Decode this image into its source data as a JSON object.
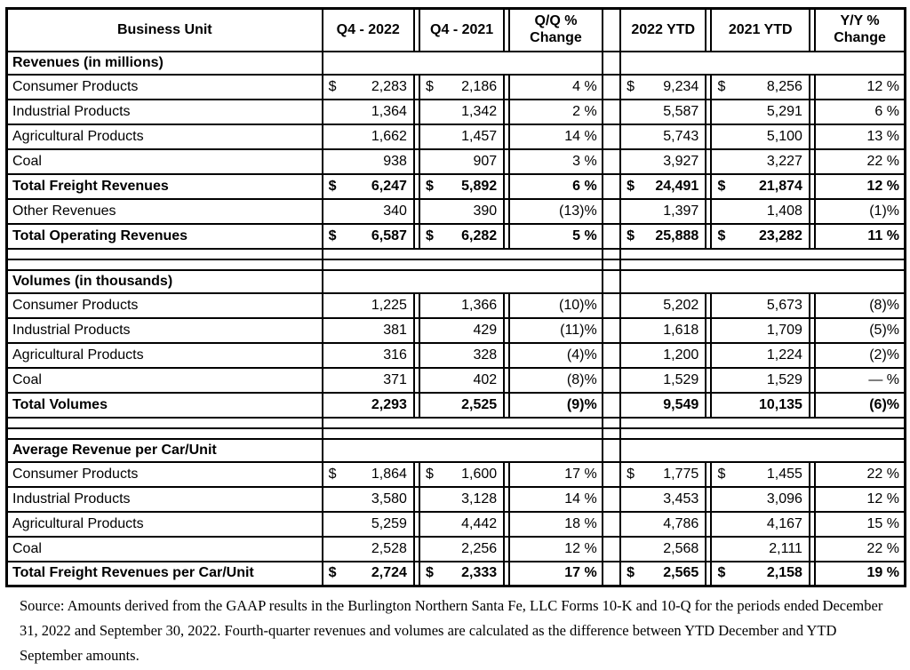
{
  "currency_symbol": "$",
  "table": {
    "header": {
      "business_unit": "Business Unit",
      "q4_2022": "Q4 - 2022",
      "q4_2021": "Q4 - 2021",
      "qq_change": "Q/Q %\nChange",
      "ytd_2022": "2022 YTD",
      "ytd_2021": "2021 YTD",
      "yy_change": "Y/Y %\nChange"
    },
    "rows": [
      {
        "type": "section",
        "label": "Revenues (in millions)"
      },
      {
        "type": "data",
        "label": "Consumer Products",
        "dollar": true,
        "q4_2022": "2,283",
        "q4_2021": "2,186",
        "qq": "4 %",
        "ytd_2022": "9,234",
        "ytd_2021": "8,256",
        "yy": "12 %"
      },
      {
        "type": "data",
        "label": "Industrial Products",
        "dollar": false,
        "q4_2022": "1,364",
        "q4_2021": "1,342",
        "qq": "2 %",
        "ytd_2022": "5,587",
        "ytd_2021": "5,291",
        "yy": "6 %"
      },
      {
        "type": "data",
        "label": "Agricultural Products",
        "dollar": false,
        "q4_2022": "1,662",
        "q4_2021": "1,457",
        "qq": "14 %",
        "ytd_2022": "5,743",
        "ytd_2021": "5,100",
        "yy": "13 %"
      },
      {
        "type": "data",
        "label": "Coal",
        "dollar": false,
        "q4_2022": "938",
        "q4_2021": "907",
        "qq": "3 %",
        "ytd_2022": "3,927",
        "ytd_2021": "3,227",
        "yy": "22 %"
      },
      {
        "type": "total",
        "label": "Total Freight Revenues",
        "dollar": true,
        "q4_2022": "6,247",
        "q4_2021": "5,892",
        "qq": "6 %",
        "ytd_2022": "24,491",
        "ytd_2021": "21,874",
        "yy": "12 %"
      },
      {
        "type": "data",
        "label": "Other Revenues",
        "dollar": false,
        "q4_2022": "340",
        "q4_2021": "390",
        "qq": "(13)%",
        "ytd_2022": "1,397",
        "ytd_2021": "1,408",
        "yy": "(1)%"
      },
      {
        "type": "total",
        "label": "Total Operating Revenues",
        "dollar": true,
        "q4_2022": "6,587",
        "q4_2021": "6,282",
        "qq": "5 %",
        "ytd_2022": "25,888",
        "ytd_2021": "23,282",
        "yy": "11 %"
      },
      {
        "type": "spacer"
      },
      {
        "type": "spacer"
      },
      {
        "type": "section",
        "label": "Volumes (in thousands)"
      },
      {
        "type": "data",
        "label": "Consumer Products",
        "dollar": false,
        "q4_2022": "1,225",
        "q4_2021": "1,366",
        "qq": "(10)%",
        "ytd_2022": "5,202",
        "ytd_2021": "5,673",
        "yy": "(8)%"
      },
      {
        "type": "data",
        "label": "Industrial Products",
        "dollar": false,
        "q4_2022": "381",
        "q4_2021": "429",
        "qq": "(11)%",
        "ytd_2022": "1,618",
        "ytd_2021": "1,709",
        "yy": "(5)%"
      },
      {
        "type": "data",
        "label": "Agricultural Products",
        "dollar": false,
        "q4_2022": "316",
        "q4_2021": "328",
        "qq": "(4)%",
        "ytd_2022": "1,200",
        "ytd_2021": "1,224",
        "yy": "(2)%"
      },
      {
        "type": "data",
        "label": "Coal",
        "dollar": false,
        "q4_2022": "371",
        "q4_2021": "402",
        "qq": "(8)%",
        "ytd_2022": "1,529",
        "ytd_2021": "1,529",
        "yy": "— %"
      },
      {
        "type": "total",
        "label": "Total Volumes",
        "dollar": false,
        "q4_2022": "2,293",
        "q4_2021": "2,525",
        "qq": "(9)%",
        "ytd_2022": "9,549",
        "ytd_2021": "10,135",
        "yy": "(6)%"
      },
      {
        "type": "spacer"
      },
      {
        "type": "spacer"
      },
      {
        "type": "section",
        "label": "Average Revenue per Car/Unit"
      },
      {
        "type": "data",
        "label": "Consumer Products",
        "dollar": true,
        "q4_2022": "1,864",
        "q4_2021": "1,600",
        "qq": "17 %",
        "ytd_2022": "1,775",
        "ytd_2021": "1,455",
        "yy": "22 %"
      },
      {
        "type": "data",
        "label": "Industrial Products",
        "dollar": false,
        "q4_2022": "3,580",
        "q4_2021": "3,128",
        "qq": "14 %",
        "ytd_2022": "3,453",
        "ytd_2021": "3,096",
        "yy": "12 %"
      },
      {
        "type": "data",
        "label": "Agricultural Products",
        "dollar": false,
        "q4_2022": "5,259",
        "q4_2021": "4,442",
        "qq": "18 %",
        "ytd_2022": "4,786",
        "ytd_2021": "4,167",
        "yy": "15 %"
      },
      {
        "type": "data",
        "label": "Coal",
        "dollar": false,
        "q4_2022": "2,528",
        "q4_2021": "2,256",
        "qq": "12 %",
        "ytd_2022": "2,568",
        "ytd_2021": "2,111",
        "yy": "22 %"
      },
      {
        "type": "total",
        "label": "Total Freight Revenues per Car/Unit",
        "dollar": true,
        "q4_2022": "2,724",
        "q4_2021": "2,333",
        "qq": "17 %",
        "ytd_2022": "2,565",
        "ytd_2021": "2,158",
        "yy": "19 %"
      }
    ]
  },
  "footer": {
    "source_text": "Source: Amounts derived from the GAAP results in the Burlington Northern Santa Fe, LLC Forms 10-K and 10-Q for the periods ended December 31, 2022 and September 30, 2022. Fourth-quarter revenues and volumes are calculated as the difference between YTD December and YTD September amounts."
  }
}
